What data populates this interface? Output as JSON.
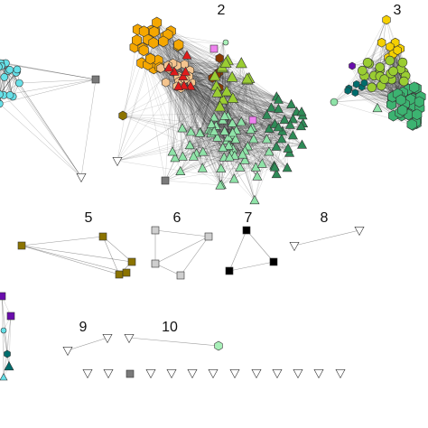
{
  "figure": {
    "component_labels": [
      "2",
      "3",
      "5",
      "6",
      "7",
      "8",
      "9",
      "10"
    ],
    "components": [
      {
        "label": "",
        "node_count_estimate": 20,
        "shapes": [
          "circle",
          "square",
          "triangle"
        ],
        "colors": [
          "#66e0e8",
          "#7a7a7a"
        ]
      },
      {
        "label": "2",
        "node_count_estimate": 180,
        "shapes": [
          "hexagon",
          "circle",
          "triangle",
          "square"
        ],
        "colors": [
          "#f5a700",
          "#f4c48e",
          "#e01b1b",
          "#8b3a00",
          "#9acd32",
          "#2e8b57",
          "#8fe3a8",
          "#ee82ee",
          "#7a7a7a"
        ]
      },
      {
        "label": "3",
        "node_count_estimate": 90,
        "shapes": [
          "hexagon",
          "circle",
          "triangle"
        ],
        "colors": [
          "#f5d000",
          "#9acd32",
          "#3cb371",
          "#8fe3a8",
          "#006d6d",
          "#6a0dad"
        ]
      },
      {
        "label": "5",
        "node_count": 5,
        "shapes": [
          "square"
        ],
        "colors": [
          "#8b7300"
        ]
      },
      {
        "label": "6",
        "node_count": 4,
        "shapes": [
          "square"
        ],
        "colors": [
          "#cfcfcf"
        ]
      },
      {
        "label": "7",
        "node_count": 3,
        "shapes": [
          "square"
        ],
        "colors": [
          "#000000"
        ]
      },
      {
        "label": "8",
        "node_count": 2,
        "shapes": [
          "triangle-down"
        ],
        "colors": [
          "#ffffff"
        ]
      },
      {
        "label": "9",
        "node_count": 2,
        "shapes": [
          "triangle-down"
        ],
        "colors": [
          "#ffffff"
        ]
      },
      {
        "label": "10",
        "node_count": 2,
        "shapes": [
          "triangle-down",
          "hexagon"
        ],
        "colors": [
          "#ffffff",
          "#a8f0b8"
        ]
      },
      {
        "label": "",
        "node_count_estimate": 6,
        "shapes": [
          "square",
          "hexagon",
          "triangle"
        ],
        "colors": [
          "#6a0dad",
          "#006d6d",
          "#66e0e8"
        ]
      }
    ],
    "isolates": {
      "count": 13,
      "shapes": [
        "triangle-down",
        "square"
      ],
      "colors": [
        "#ffffff",
        "#7a7a7a"
      ]
    }
  }
}
